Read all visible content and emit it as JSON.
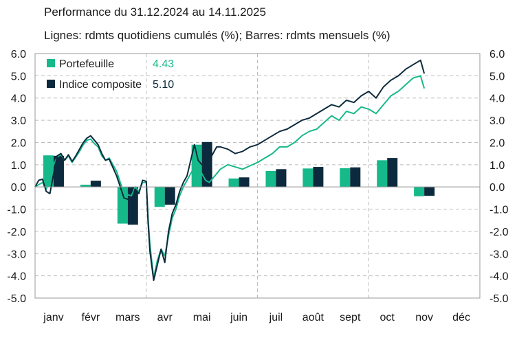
{
  "title": "Performance du 31.12.2024 au 14.11.2025",
  "subtitle": "Lignes: rdmts quotidiens cumulés (%); Barres: rdmts mensuels (%)",
  "colors": {
    "portfolio": "#16b98a",
    "index": "#0c2a3d",
    "grid": "#bbbbbb",
    "axis": "#999999"
  },
  "chart_data": {
    "type": "bar+line",
    "title": "Performance du 31.12.2024 au 14.11.2025",
    "subtitle": "Lignes: rdmts quotidiens cumulés (%); Barres: rdmts mensuels (%)",
    "ylim": [
      -5,
      6
    ],
    "yticks": [
      "6.0",
      "5.0",
      "4.0",
      "3.0",
      "2.0",
      "1.0",
      "0.0",
      "-1.0",
      "-2.0",
      "-3.0",
      "-4.0",
      "-5.0"
    ],
    "categories": [
      "janv",
      "févr",
      "mars",
      "avr",
      "mai",
      "juin",
      "juil",
      "août",
      "sept",
      "oct",
      "nov",
      "déc"
    ],
    "legend": {
      "position": "top-left",
      "items": [
        {
          "name": "Portefeuille",
          "value": "4.43"
        },
        {
          "name": "Indice composite",
          "value": "5.10"
        }
      ]
    },
    "bars": [
      {
        "name": "Portefeuille",
        "values": [
          1.42,
          0.1,
          -1.65,
          -0.9,
          1.9,
          0.38,
          0.72,
          0.83,
          0.84,
          1.2,
          -0.42,
          null
        ]
      },
      {
        "name": "Indice composite",
        "values": [
          1.4,
          0.28,
          -1.7,
          -0.8,
          2.02,
          0.43,
          0.8,
          0.9,
          0.88,
          1.3,
          -0.4,
          null
        ]
      }
    ],
    "lines": [
      {
        "name": "Portefeuille",
        "x": [
          0,
          0.1,
          0.2,
          0.3,
          0.4,
          0.5,
          0.6,
          0.7,
          0.8,
          0.9,
          1.0,
          1.1,
          1.2,
          1.3,
          1.4,
          1.5,
          1.6,
          1.7,
          1.8,
          1.9,
          2.0,
          2.2,
          2.4,
          2.6,
          2.7,
          2.8,
          2.9,
          3.0,
          3.05,
          3.1,
          3.2,
          3.3,
          3.4,
          3.5,
          3.6,
          3.7,
          3.8,
          3.9,
          4.0,
          4.1,
          4.2,
          4.3,
          4.4,
          4.5,
          4.6,
          4.7,
          4.8,
          4.9,
          5.0,
          5.2,
          5.4,
          5.6,
          5.8,
          6.0,
          6.2,
          6.4,
          6.6,
          6.8,
          7.0,
          7.2,
          7.4,
          7.6,
          7.8,
          8.0,
          8.2,
          8.4,
          8.6,
          8.8,
          9.0,
          9.2,
          9.4,
          9.6,
          9.8,
          10.0,
          10.2,
          10.4,
          10.5
        ],
        "y": [
          0,
          0.1,
          0.2,
          -0.1,
          0.3,
          1.0,
          1.35,
          1.45,
          1.2,
          1.4,
          1.1,
          1.35,
          1.6,
          1.9,
          2.1,
          2.15,
          1.95,
          1.8,
          1.4,
          1.2,
          1.3,
          0.7,
          -0.3,
          -0.4,
          0.0,
          -0.2,
          0.2,
          0.2,
          -1.4,
          -2.6,
          -4.1,
          -3.3,
          -2.8,
          -3.1,
          -2.2,
          -1.4,
          -1.0,
          -0.4,
          0.0,
          0.3,
          0.6,
          0.9,
          0.7,
          0.6,
          0.3,
          0.2,
          0.4,
          0.6,
          0.8,
          1.0,
          0.9,
          0.8,
          0.95,
          1.1,
          1.3,
          1.5,
          1.8,
          1.8,
          2.0,
          2.3,
          2.5,
          2.6,
          2.9,
          3.2,
          3.0,
          3.4,
          3.3,
          3.6,
          3.5,
          3.3,
          3.7,
          4.1,
          4.3,
          4.6,
          4.9,
          5.0,
          4.43
        ]
      },
      {
        "name": "Indice composite",
        "x": [
          0,
          0.1,
          0.2,
          0.3,
          0.4,
          0.5,
          0.6,
          0.7,
          0.8,
          0.9,
          1.0,
          1.1,
          1.2,
          1.3,
          1.4,
          1.5,
          1.6,
          1.7,
          1.8,
          1.9,
          2.0,
          2.2,
          2.4,
          2.6,
          2.7,
          2.8,
          2.9,
          3.0,
          3.05,
          3.1,
          3.2,
          3.3,
          3.4,
          3.5,
          3.6,
          3.7,
          3.8,
          3.9,
          4.0,
          4.1,
          4.2,
          4.3,
          4.4,
          4.5,
          4.6,
          4.7,
          4.8,
          4.9,
          5.0,
          5.2,
          5.4,
          5.6,
          5.8,
          6.0,
          6.2,
          6.4,
          6.6,
          6.8,
          7.0,
          7.2,
          7.4,
          7.6,
          7.8,
          8.0,
          8.2,
          8.4,
          8.6,
          8.8,
          9.0,
          9.2,
          9.4,
          9.6,
          9.8,
          10.0,
          10.2,
          10.4,
          10.5
        ],
        "y": [
          0,
          0.3,
          0.35,
          -0.2,
          -0.3,
          0.6,
          1.4,
          1.5,
          1.2,
          1.45,
          1.15,
          1.4,
          1.7,
          2.0,
          2.2,
          2.3,
          2.1,
          1.9,
          1.5,
          1.2,
          1.25,
          0.5,
          -0.5,
          -0.6,
          -0.1,
          -0.3,
          0.3,
          0.25,
          -1.6,
          -2.9,
          -4.2,
          -3.5,
          -2.8,
          -3.4,
          -2.0,
          -1.2,
          -0.8,
          -0.2,
          0.2,
          0.5,
          1.2,
          1.9,
          1.2,
          1.0,
          1.0,
          1.2,
          1.5,
          1.8,
          1.8,
          1.7,
          1.5,
          1.6,
          1.8,
          1.9,
          2.1,
          2.3,
          2.5,
          2.6,
          2.8,
          3.0,
          3.1,
          3.3,
          3.5,
          3.7,
          3.6,
          3.9,
          3.8,
          4.1,
          4.3,
          4.0,
          4.5,
          4.8,
          5.0,
          5.3,
          5.5,
          5.7,
          5.1
        ]
      }
    ]
  }
}
